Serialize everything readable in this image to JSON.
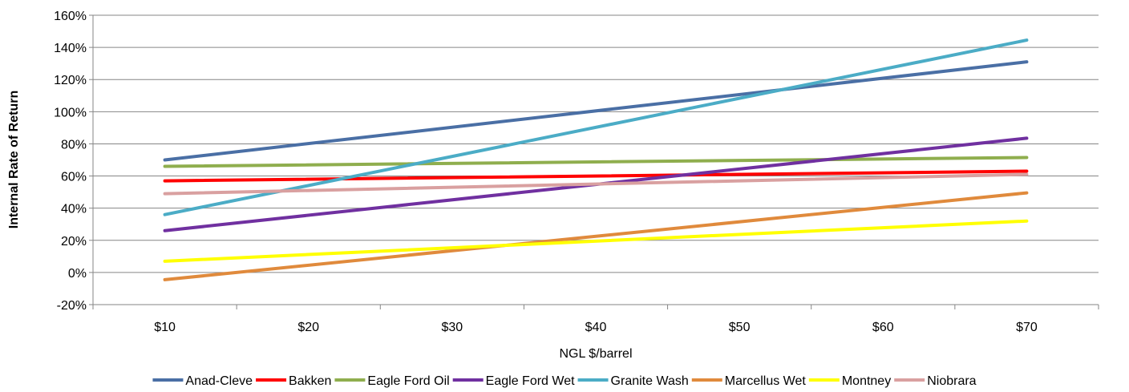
{
  "chart_data": {
    "type": "line",
    "xlabel": "NGL $/barrel",
    "ylabel": "Internal Rate of Return",
    "categories": [
      "$10",
      "$20",
      "$30",
      "$40",
      "$50",
      "$60",
      "$70"
    ],
    "x": [
      10,
      70
    ],
    "ylim": [
      -20,
      160
    ],
    "yticks": [
      "-20%",
      "0%",
      "20%",
      "40%",
      "60%",
      "80%",
      "100%",
      "120%",
      "140%",
      "160%"
    ],
    "grid": true,
    "legend_position": "bottom",
    "series": [
      {
        "name": "Anad-Cleve",
        "color": "#4A6FA5",
        "values": [
          70,
          131
        ]
      },
      {
        "name": "Bakken",
        "color": "#FF0000",
        "values": [
          57,
          63
        ]
      },
      {
        "name": "Eagle Ford Oil",
        "color": "#8FAE4E",
        "values": [
          66,
          71.5
        ]
      },
      {
        "name": "Eagle Ford Wet",
        "color": "#7030A0",
        "values": [
          26,
          83.5
        ]
      },
      {
        "name": "Granite Wash",
        "color": "#4BACC6",
        "values": [
          36,
          144.5
        ]
      },
      {
        "name": "Marcellus  Wet",
        "color": "#E08A3C",
        "values": [
          -4.5,
          49.5
        ]
      },
      {
        "name": "Montney",
        "color": "#FFFF00",
        "values": [
          7,
          32
        ]
      },
      {
        "name": "Niobrara",
        "color": "#D9A0A0",
        "values": [
          49,
          61
        ]
      }
    ]
  }
}
